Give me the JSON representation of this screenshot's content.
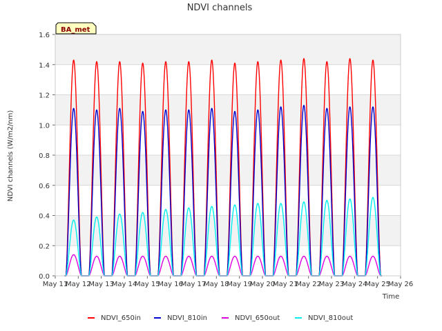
{
  "chart_data": {
    "type": "line",
    "title": "NDVI channels",
    "xlabel": "Time",
    "ylabel": "NDVI channels (W/m2/nm)",
    "badge": "BA_met",
    "ylim": [
      0.0,
      1.6
    ],
    "xlim_days": [
      11,
      26
    ],
    "yticks": [
      "0.0",
      "0.2",
      "0.4",
      "0.6",
      "0.8",
      "1.0",
      "1.2",
      "1.4",
      "1.6"
    ],
    "xticks": [
      "May 11",
      "May 12",
      "May 13",
      "May 14",
      "May 15",
      "May 16",
      "May 17",
      "May 18",
      "May 19",
      "May 20",
      "May 21",
      "May 22",
      "May 23",
      "May 24",
      "May 25",
      "May 26"
    ],
    "peak_days": [
      11.8,
      12.8,
      13.8,
      14.8,
      15.8,
      16.8,
      17.8,
      18.8,
      19.8,
      20.8,
      21.8,
      22.8,
      23.8,
      24.8
    ],
    "series": [
      {
        "name": "NDVI_650in",
        "color": "#ff0000",
        "peaks": [
          1.43,
          1.42,
          1.42,
          1.41,
          1.42,
          1.42,
          1.43,
          1.41,
          1.42,
          1.43,
          1.44,
          1.42,
          1.44,
          1.43
        ]
      },
      {
        "name": "NDVI_810in",
        "color": "#0000cc",
        "peaks": [
          1.11,
          1.1,
          1.11,
          1.09,
          1.1,
          1.1,
          1.11,
          1.09,
          1.1,
          1.12,
          1.13,
          1.11,
          1.12,
          1.12
        ]
      },
      {
        "name": "NDVI_650out",
        "color": "#dd00dd",
        "peaks": [
          0.14,
          0.13,
          0.13,
          0.13,
          0.13,
          0.13,
          0.13,
          0.13,
          0.13,
          0.13,
          0.13,
          0.13,
          0.13,
          0.13
        ]
      },
      {
        "name": "NDVI_810out",
        "color": "#00eeee",
        "peaks": [
          0.37,
          0.39,
          0.41,
          0.42,
          0.44,
          0.45,
          0.46,
          0.47,
          0.48,
          0.48,
          0.49,
          0.5,
          0.51,
          0.52
        ]
      }
    ],
    "legend_position": "bottom"
  }
}
